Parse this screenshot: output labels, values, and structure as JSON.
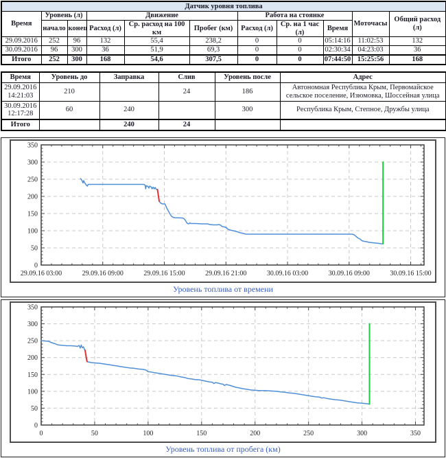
{
  "colors": {
    "table_title_bg": "#dce6f2",
    "chart_title_blue": "#3a5fbf",
    "line_blue": "#4f8fd9",
    "event_red": "#e53333",
    "event_green": "#19cd3a"
  },
  "table1": {
    "title": "Датчик уровня топлива",
    "headers": {
      "time": "Время",
      "level_group": "Уровень (л)",
      "level_start": "начало",
      "level_end": "конец",
      "movement_group": "Движение",
      "mv_consumed": "Расход (л)",
      "mv_avg100": "Ср. расход на 100 км",
      "mv_mileage": "Пробег (км)",
      "idle_group": "Работа на стоянке",
      "idle_consumed": "Расход (л)",
      "idle_avg_hour": "Ср. на 1 час (л)",
      "idle_time": "Время",
      "motohours": "Моточасы",
      "total_consumption": "Общий расход (л)"
    },
    "rows": [
      {
        "cells": [
          "29.09.2016",
          "252",
          "96",
          "132",
          "55,4",
          "238,2",
          "0",
          "0",
          "05:14:16",
          "11:02:53",
          "132"
        ]
      },
      {
        "cells": [
          "30.09.2016",
          "96",
          "300",
          "36",
          "51,9",
          "69,3",
          "0",
          "0",
          "02:30:34",
          "04:23:03",
          "36"
        ]
      },
      {
        "cells": [
          "Итого",
          "252",
          "300",
          "168",
          "54,6",
          "307,5",
          "0",
          "0",
          "07:44:50",
          "15:25:56",
          "168"
        ]
      }
    ]
  },
  "table2": {
    "headers": [
      "Время",
      "Уровень до",
      "Заправка",
      "Слив",
      "Уровень после",
      "Адрес"
    ],
    "rows": [
      {
        "cells": [
          "29.09.2016 14:21:03",
          "210",
          "",
          "24",
          "186",
          "Автономная Республика Крым, Первомайское сельское поселение, Изюмовка, Шоссейная улица"
        ]
      },
      {
        "cells": [
          "30.09.2016 12:17:28",
          "60",
          "240",
          "",
          "300",
          "Республика Крым, Степное, Дружбы улица"
        ]
      },
      {
        "cells": [
          "Итого",
          "",
          "240",
          "24",
          "",
          ""
        ]
      }
    ]
  },
  "chart_data": [
    {
      "type": "line",
      "title": "Уровень топлива от времени",
      "xlabel": "",
      "ylabel": "",
      "grid": true,
      "legend": "none",
      "xlim": [
        3,
        40.3
      ],
      "ylim": [
        0,
        350
      ],
      "x_ticks": [
        3,
        9,
        15,
        21,
        27,
        33,
        39
      ],
      "x_tick_labels": [
        "29.09.16 03:00",
        "29.09.16 09:00",
        "29.09.16 15:00",
        "29.09.16 21:00",
        "30.09.16 03:00",
        "30.09.16 09:00",
        "30.09.16 15:00"
      ],
      "y_ticks": [
        0,
        50,
        100,
        150,
        200,
        250,
        300,
        350
      ],
      "minor_x_step": 1,
      "minor_y_step": 10,
      "series": [
        {
          "name": "fuel-level",
          "color": "#4f8fd9",
          "width": 1.5,
          "points": [
            [
              6.83,
              252
            ],
            [
              6.9,
              250
            ],
            [
              7.0,
              245
            ],
            [
              7.08,
              239
            ],
            [
              7.14,
              246
            ],
            [
              7.22,
              241
            ],
            [
              7.3,
              237
            ],
            [
              7.42,
              232
            ],
            [
              7.5,
              230
            ],
            [
              7.58,
              235
            ],
            [
              9,
              235
            ],
            [
              11,
              235
            ],
            [
              13,
              235
            ],
            [
              13.12,
              233
            ],
            [
              13.18,
              222
            ],
            [
              13.24,
              231
            ],
            [
              13.4,
              229
            ],
            [
              13.5,
              224
            ],
            [
              13.56,
              230
            ],
            [
              13.7,
              228
            ],
            [
              13.8,
              222
            ],
            [
              13.9,
              227
            ],
            [
              14.0,
              222
            ],
            [
              14.1,
              226
            ],
            [
              14.2,
              221
            ],
            [
              14.33,
              220
            ],
            [
              14.5,
              186
            ],
            [
              14.6,
              182
            ],
            [
              14.72,
              179
            ],
            [
              14.85,
              178
            ],
            [
              15.05,
              178
            ],
            [
              15.15,
              172
            ],
            [
              15.25,
              165
            ],
            [
              15.4,
              157
            ],
            [
              15.55,
              149
            ],
            [
              15.7,
              142
            ],
            [
              15.85,
              139
            ],
            [
              16.0,
              138
            ],
            [
              16.8,
              137
            ],
            [
              16.95,
              134
            ],
            [
              17.05,
              130
            ],
            [
              17.15,
              125
            ],
            [
              17.25,
              121
            ],
            [
              17.38,
              120
            ],
            [
              17.48,
              123
            ],
            [
              17.58,
              121
            ],
            [
              18.1,
              121
            ],
            [
              18.6,
              120
            ],
            [
              19.2,
              120
            ],
            [
              19.45,
              118
            ],
            [
              19.8,
              117
            ],
            [
              20.15,
              117
            ],
            [
              20.3,
              118
            ],
            [
              20.5,
              116
            ],
            [
              20.62,
              112
            ],
            [
              20.85,
              111
            ],
            [
              21.05,
              109
            ],
            [
              21.15,
              105
            ],
            [
              21.3,
              103
            ],
            [
              21.55,
              101
            ],
            [
              21.85,
              99
            ],
            [
              22.1,
              97
            ],
            [
              22.4,
              94
            ],
            [
              22.7,
              92
            ],
            [
              22.95,
              90
            ],
            [
              25,
              90
            ],
            [
              28,
              90
            ],
            [
              31,
              90
            ],
            [
              33.3,
              90
            ],
            [
              33.5,
              88
            ],
            [
              33.65,
              84
            ],
            [
              33.85,
              79
            ],
            [
              34.05,
              76
            ],
            [
              34.25,
              71
            ],
            [
              34.45,
              69
            ],
            [
              34.7,
              68
            ],
            [
              35.0,
              66
            ],
            [
              35.3,
              65
            ],
            [
              35.6,
              64
            ],
            [
              35.9,
              63
            ],
            [
              36.1,
              62
            ],
            [
              36.3,
              62
            ]
          ]
        },
        {
          "name": "drain-event",
          "color": "#e53333",
          "width": 2,
          "points": [
            [
              14.33,
              220
            ],
            [
              14.38,
              211
            ],
            [
              14.44,
              199
            ],
            [
              14.5,
              186
            ]
          ]
        },
        {
          "name": "refuel-event",
          "color": "#19cd3a",
          "width": 2,
          "points": [
            [
              36.3,
              62
            ],
            [
              36.3,
              300
            ]
          ]
        }
      ]
    },
    {
      "type": "line",
      "title": "Уровень топлива от пробега (км)",
      "xlabel": "",
      "ylabel": "",
      "grid": true,
      "legend": "none",
      "xlim": [
        0,
        358
      ],
      "ylim": [
        0,
        350
      ],
      "x_ticks": [
        0,
        50,
        100,
        150,
        200,
        250,
        300,
        350
      ],
      "x_tick_labels": [
        "0",
        "50",
        "100",
        "150",
        "200",
        "250",
        "300",
        "350"
      ],
      "y_ticks": [
        0,
        50,
        100,
        150,
        200,
        250,
        300,
        350
      ],
      "minor_x_step": 10,
      "minor_y_step": 10,
      "series": [
        {
          "name": "fuel-level",
          "color": "#4f8fd9",
          "width": 1.5,
          "points": [
            [
              0,
              250
            ],
            [
              4,
              249
            ],
            [
              7,
              248
            ],
            [
              9,
              245
            ],
            [
              11,
              243
            ],
            [
              13,
              241
            ],
            [
              15,
              238
            ],
            [
              17,
              237
            ],
            [
              20,
              236
            ],
            [
              24,
              235
            ],
            [
              28,
              235
            ],
            [
              32,
              234
            ],
            [
              34,
              233
            ],
            [
              35.5,
              236
            ],
            [
              36.5,
              228
            ],
            [
              37.5,
              237
            ],
            [
              38.5,
              229
            ],
            [
              39.5,
              232
            ],
            [
              40.5,
              224
            ],
            [
              41,
              222
            ],
            [
              43,
              188
            ],
            [
              44,
              187
            ],
            [
              47,
              185
            ],
            [
              51,
              184
            ],
            [
              55,
              183
            ],
            [
              59,
              181
            ],
            [
              63,
              179
            ],
            [
              67,
              177
            ],
            [
              71,
              175
            ],
            [
              75,
              173
            ],
            [
              79,
              171
            ],
            [
              83,
              169
            ],
            [
              87,
              168
            ],
            [
              91,
              166
            ],
            [
              95,
              165
            ],
            [
              98,
              163
            ],
            [
              100,
              158
            ],
            [
              103,
              157
            ],
            [
              106,
              155
            ],
            [
              110,
              153
            ],
            [
              114,
              151
            ],
            [
              118,
              149
            ],
            [
              122,
              147
            ],
            [
              126,
              146
            ],
            [
              130,
              143
            ],
            [
              134,
              141
            ],
            [
              137,
              138
            ],
            [
              140,
              137
            ],
            [
              144,
              135
            ],
            [
              148,
              134
            ],
            [
              151,
              132
            ],
            [
              154,
              130
            ],
            [
              157,
              128
            ],
            [
              160,
              127
            ],
            [
              161.5,
              123
            ],
            [
              163,
              126
            ],
            [
              166,
              124
            ],
            [
              168,
              122
            ],
            [
              170,
              121
            ],
            [
              171.5,
              117
            ],
            [
              173,
              120
            ],
            [
              176,
              118
            ],
            [
              179,
              115
            ],
            [
              182,
              112
            ],
            [
              185,
              110
            ],
            [
              188,
              108
            ],
            [
              192,
              106
            ],
            [
              196,
              104
            ],
            [
              200,
              103
            ],
            [
              205,
              102
            ],
            [
              210,
              102
            ],
            [
              215,
              101
            ],
            [
              220,
              100
            ],
            [
              224,
              98
            ],
            [
              228,
              97
            ],
            [
              232,
              95
            ],
            [
              236,
              94
            ],
            [
              240,
              92
            ],
            [
              244,
              90
            ],
            [
              248,
              88
            ],
            [
              252,
              86
            ],
            [
              256,
              84
            ],
            [
              260,
              83
            ],
            [
              262.5,
              80
            ],
            [
              264,
              81
            ],
            [
              267,
              79
            ],
            [
              271,
              77
            ],
            [
              275,
              75
            ],
            [
              279,
              74
            ],
            [
              283,
              72
            ],
            [
              287,
              70
            ],
            [
              291,
              68
            ],
            [
              295,
              66
            ],
            [
              299,
              65
            ],
            [
              302,
              64
            ],
            [
              305,
              63
            ],
            [
              307,
              62
            ]
          ]
        },
        {
          "name": "drain-event",
          "color": "#e53333",
          "width": 2,
          "points": [
            [
              41,
              222
            ],
            [
              41.6,
              212
            ],
            [
              42.2,
              199
            ],
            [
              42.6,
              192
            ],
            [
              43,
              188
            ]
          ]
        },
        {
          "name": "refuel-event",
          "color": "#19cd3a",
          "width": 2,
          "points": [
            [
              307,
              62
            ],
            [
              307,
              300
            ]
          ]
        }
      ]
    }
  ]
}
